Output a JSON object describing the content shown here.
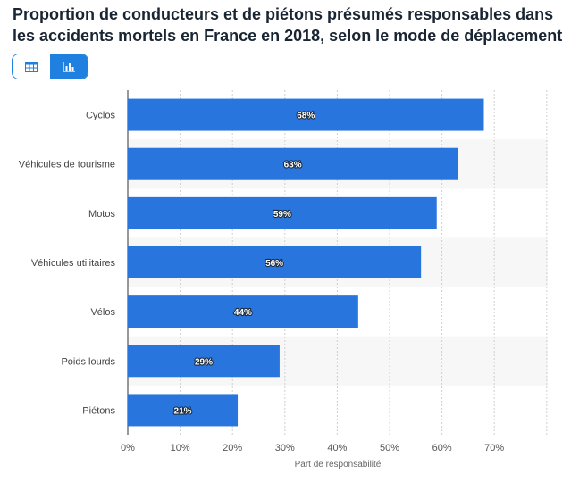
{
  "title": "Proportion de conducteurs et de piétons présumés responsables dans les accidents mortels en France en 2018, selon le mode de déplacement",
  "view_toggle": {
    "table_icon": "table-icon",
    "chart_icon": "bar-chart-icon",
    "active": "chart"
  },
  "colors": {
    "bar": "#2876dd",
    "band": "#f7f7f7",
    "grid": "#cfcfcf",
    "accent": "#1f80e0"
  },
  "chart_data": {
    "type": "bar",
    "orientation": "horizontal",
    "categories": [
      "Cyclos",
      "Véhicules de tourisme",
      "Motos",
      "Véhicules utilitaires",
      "Vélos",
      "Poids lourds",
      "Piétons"
    ],
    "values": [
      68,
      63,
      59,
      56,
      44,
      29,
      21
    ],
    "value_labels": [
      "68%",
      "63%",
      "59%",
      "56%",
      "44%",
      "29%",
      "21%"
    ],
    "x_ticks": [
      "0%",
      "10%",
      "20%",
      "30%",
      "40%",
      "50%",
      "60%",
      "70%"
    ],
    "xlim": [
      0,
      80
    ],
    "xlabel": "Part de responsabilité",
    "ylabel": "",
    "grid": true
  }
}
